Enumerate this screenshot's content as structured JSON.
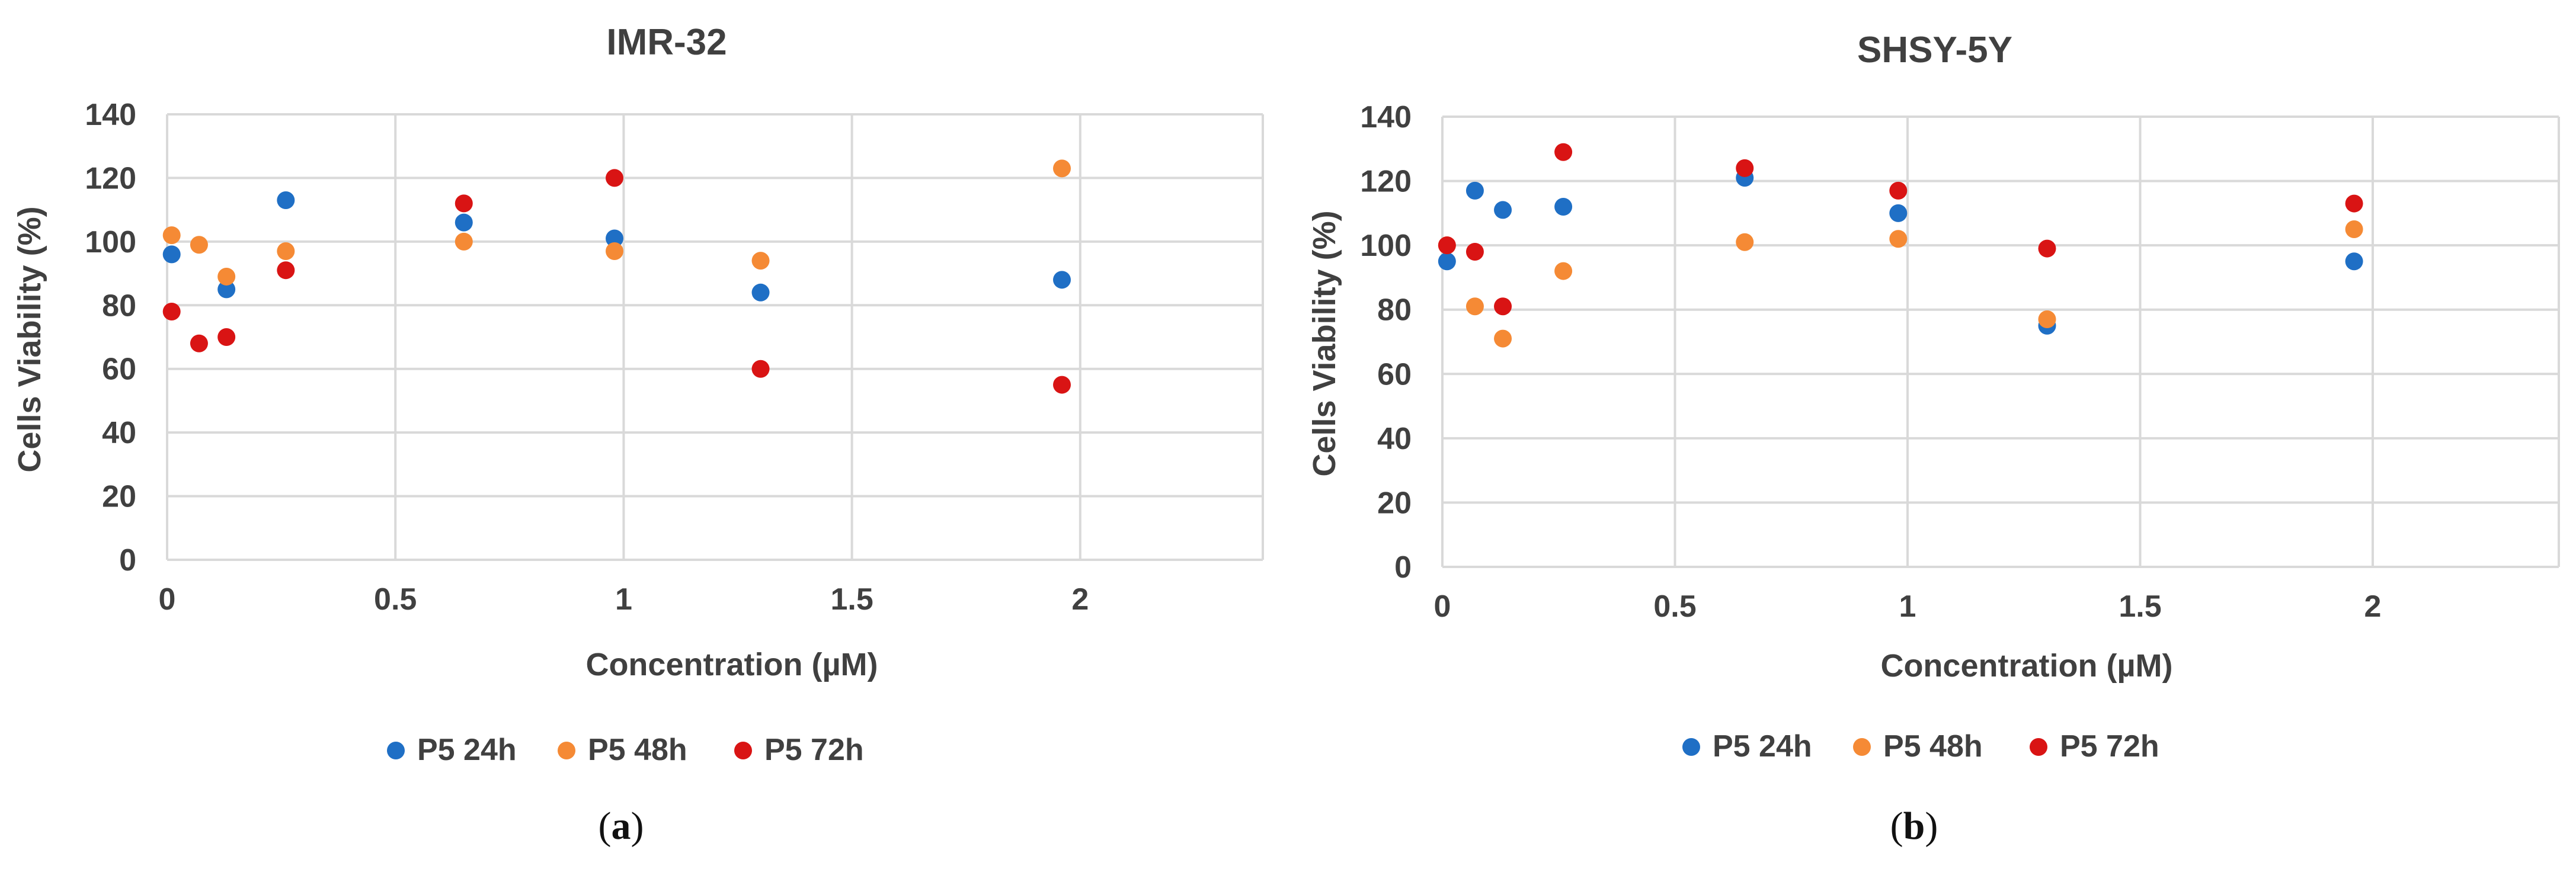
{
  "colors": {
    "P5 24h": "#1f6fc5",
    "P5 48h": "#f58a35",
    "P5 72h": "#d91414",
    "grid": "#d9d9d9",
    "text": "#404040"
  },
  "chart_data": [
    {
      "type": "scatter",
      "title": "IMR-32",
      "xlabel": "Concentration (µM)",
      "ylabel": "Cells Viability (%)",
      "xlim": [
        0,
        2.4
      ],
      "ylim": [
        0,
        140
      ],
      "xticks": [
        "0",
        "0.5",
        "1",
        "1.5",
        "2"
      ],
      "yticks": [
        "0",
        "20",
        "40",
        "60",
        "80",
        "100",
        "120",
        "140"
      ],
      "grid": true,
      "legend_position": "bottom",
      "panel_label": [
        "(",
        "a",
        ")"
      ],
      "series": [
        {
          "name": "P5 24h",
          "x": [
            0.01,
            0.13,
            0.26,
            0.65,
            0.98,
            1.3,
            1.96
          ],
          "y": [
            96,
            85,
            113,
            106,
            101,
            84,
            88
          ]
        },
        {
          "name": "P5 48h",
          "x": [
            0.01,
            0.07,
            0.13,
            0.26,
            0.65,
            0.98,
            1.3,
            1.96
          ],
          "y": [
            102,
            99,
            89,
            97,
            100,
            97,
            94,
            123
          ]
        },
        {
          "name": "P5 72h",
          "x": [
            0.01,
            0.07,
            0.13,
            0.26,
            0.65,
            0.98,
            1.3,
            1.96
          ],
          "y": [
            78,
            68,
            70,
            91,
            112,
            120,
            60,
            55
          ]
        }
      ]
    },
    {
      "type": "scatter",
      "title": "SHSY-5Y",
      "xlabel": "Concentration (µM)",
      "ylabel": "Cells Viability (%)",
      "xlim": [
        0,
        2.4
      ],
      "ylim": [
        0,
        140
      ],
      "xticks": [
        "0",
        "0.5",
        "1",
        "1.5",
        "2"
      ],
      "yticks": [
        "0",
        "20",
        "40",
        "60",
        "80",
        "100",
        "120",
        "140"
      ],
      "grid": true,
      "legend_position": "bottom",
      "panel_label": [
        "(",
        "b",
        ")"
      ],
      "series": [
        {
          "name": "P5 24h",
          "x": [
            0.01,
            0.07,
            0.13,
            0.26,
            0.65,
            0.98,
            1.3,
            1.96
          ],
          "y": [
            95,
            117,
            111,
            112,
            121,
            110,
            75,
            95
          ]
        },
        {
          "name": "P5 48h",
          "x": [
            0.01,
            0.07,
            0.13,
            0.26,
            0.65,
            0.98,
            1.3,
            1.96
          ],
          "y": [
            100,
            81,
            71,
            92,
            101,
            102,
            77,
            105
          ]
        },
        {
          "name": "P5 72h",
          "x": [
            0.01,
            0.07,
            0.13,
            0.26,
            0.65,
            0.98,
            1.3,
            1.96
          ],
          "y": [
            100,
            98,
            81,
            129,
            124,
            117,
            99,
            113
          ]
        }
      ]
    }
  ]
}
